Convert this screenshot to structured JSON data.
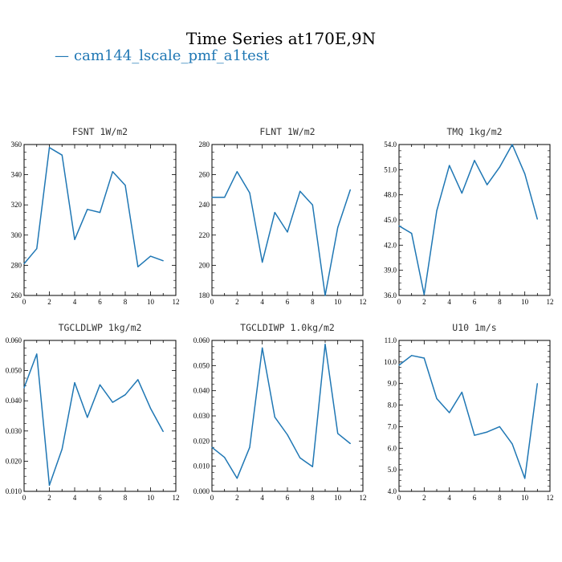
{
  "header": {
    "title": "Time Series at170E,9N",
    "legend_label": "cam144_lscale_pmf_a1test",
    "legend_marker": "—",
    "series_color": "#1f77b4"
  },
  "chart_data": [
    {
      "type": "line",
      "title": "FSNT  1W/m2",
      "x": [
        0,
        1,
        2,
        3,
        4,
        5,
        6,
        7,
        8,
        9,
        10,
        11
      ],
      "series": [
        {
          "name": "cam144_lscale_pmf_a1test",
          "values": [
            281,
            291,
            358,
            353,
            297,
            317,
            315,
            342,
            333,
            279,
            286,
            283
          ]
        }
      ],
      "xlim": [
        0,
        12
      ],
      "ylim": [
        260,
        360
      ],
      "xticks": [
        "0",
        "2",
        "4",
        "6",
        "8",
        "10",
        "12"
      ],
      "yticks": [
        "260",
        "280",
        "300",
        "320",
        "340",
        "360"
      ]
    },
    {
      "type": "line",
      "title": "FLNT  1W/m2",
      "x": [
        0,
        1,
        2,
        3,
        4,
        5,
        6,
        7,
        8,
        9,
        10,
        11
      ],
      "series": [
        {
          "name": "cam144_lscale_pmf_a1test",
          "values": [
            245,
            245,
            262,
            248,
            202,
            235,
            222,
            249,
            240,
            180,
            225,
            250
          ]
        }
      ],
      "xlim": [
        0,
        12
      ],
      "ylim": [
        180,
        280
      ],
      "xticks": [
        "0",
        "2",
        "4",
        "6",
        "8",
        "10",
        "12"
      ],
      "yticks": [
        "180",
        "200",
        "220",
        "240",
        "260",
        "280"
      ]
    },
    {
      "type": "line",
      "title": "TMQ  1kg/m2",
      "x": [
        0,
        1,
        2,
        3,
        4,
        5,
        6,
        7,
        8,
        9,
        10,
        11
      ],
      "series": [
        {
          "name": "cam144_lscale_pmf_a1test",
          "values": [
            44.3,
            43.4,
            36.1,
            46.1,
            51.5,
            48.2,
            52.1,
            49.2,
            51.3,
            54.0,
            50.5,
            45.1
          ]
        }
      ],
      "xlim": [
        0,
        12
      ],
      "ylim": [
        36,
        54
      ],
      "xticks": [
        "0",
        "2",
        "4",
        "6",
        "8",
        "10",
        "12"
      ],
      "yticks": [
        "36.0",
        "39.0",
        "42.0",
        "45.0",
        "48.0",
        "51.0",
        "54.0"
      ]
    },
    {
      "type": "line",
      "title": "TGCLDLWP  1kg/m2",
      "x": [
        0,
        1,
        2,
        3,
        4,
        5,
        6,
        7,
        8,
        9,
        10,
        11
      ],
      "series": [
        {
          "name": "cam144_lscale_pmf_a1test",
          "values": [
            0.0443,
            0.0555,
            0.012,
            0.024,
            0.046,
            0.0345,
            0.0453,
            0.0395,
            0.042,
            0.047,
            0.0375,
            0.0298
          ]
        }
      ],
      "xlim": [
        0,
        12
      ],
      "ylim": [
        0.01,
        0.06
      ],
      "xticks": [
        "0",
        "2",
        "4",
        "6",
        "8",
        "10",
        "12"
      ],
      "yticks": [
        "0.010",
        "0.020",
        "0.030",
        "0.040",
        "0.050",
        "0.060"
      ]
    },
    {
      "type": "line",
      "title": "TGCLDIWP  1.0kg/m2",
      "x": [
        0,
        1,
        2,
        3,
        4,
        5,
        6,
        7,
        8,
        9,
        10,
        11
      ],
      "series": [
        {
          "name": "cam144_lscale_pmf_a1test",
          "values": [
            0.0175,
            0.0135,
            0.0052,
            0.0175,
            0.057,
            0.0295,
            0.0225,
            0.0133,
            0.0098,
            0.0585,
            0.023,
            0.019
          ]
        }
      ],
      "xlim": [
        0,
        12
      ],
      "ylim": [
        0,
        0.06
      ],
      "xticks": [
        "0",
        "2",
        "4",
        "6",
        "8",
        "10",
        "12"
      ],
      "yticks": [
        "0.000",
        "0.010",
        "0.020",
        "0.030",
        "0.040",
        "0.050",
        "0.060"
      ]
    },
    {
      "type": "line",
      "title": "U10  1m/s",
      "x": [
        0,
        1,
        2,
        3,
        4,
        5,
        6,
        7,
        8,
        9,
        10,
        11
      ],
      "series": [
        {
          "name": "cam144_lscale_pmf_a1test",
          "values": [
            9.85,
            10.3,
            10.18,
            8.3,
            7.65,
            8.6,
            6.6,
            6.75,
            7.0,
            6.2,
            4.6,
            9.0
          ]
        }
      ],
      "xlim": [
        0,
        12
      ],
      "ylim": [
        4,
        11
      ],
      "xticks": [
        "0",
        "2",
        "4",
        "6",
        "8",
        "10",
        "12"
      ],
      "yticks": [
        "4.0",
        "5.0",
        "6.0",
        "7.0",
        "8.0",
        "9.0",
        "10.0",
        "11.0"
      ]
    }
  ]
}
